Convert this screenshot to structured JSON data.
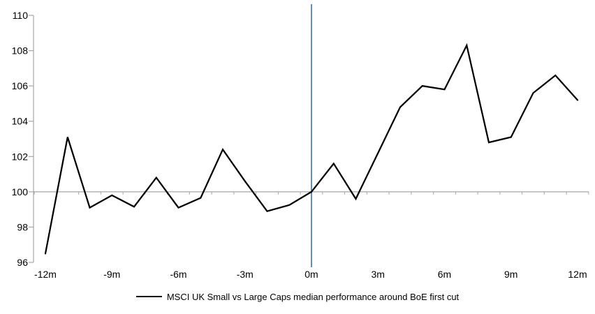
{
  "chart_data": {
    "type": "line",
    "title": "",
    "xlabel": "",
    "ylabel": "",
    "x": [
      -12,
      -11,
      -10,
      -9,
      -8,
      -7,
      -6,
      -5,
      -4,
      -3,
      -2,
      -1,
      0,
      1,
      2,
      3,
      4,
      5,
      6,
      7,
      8,
      9,
      10,
      11,
      12
    ],
    "series": [
      {
        "name": "MSCI UK Small vs Large Caps median performance around BoE first cut",
        "values": [
          96.5,
          103.1,
          99.1,
          99.8,
          99.15,
          100.8,
          99.1,
          99.65,
          102.4,
          100.6,
          98.9,
          99.25,
          100.0,
          101.6,
          99.6,
          102.2,
          104.8,
          106.0,
          105.8,
          108.3,
          102.8,
          103.1,
          105.6,
          106.6,
          105.2
        ],
        "color": "#000000"
      }
    ],
    "xlim": [
      -12,
      12
    ],
    "ylim": [
      96,
      110
    ],
    "yticks": [
      96,
      98,
      100,
      102,
      104,
      106,
      108,
      110
    ],
    "xticks": [
      {
        "pos": -12,
        "label": "-12m"
      },
      {
        "pos": -9,
        "label": "-9m"
      },
      {
        "pos": -6,
        "label": "-6m"
      },
      {
        "pos": -3,
        "label": "-3m"
      },
      {
        "pos": 0,
        "label": "0m"
      },
      {
        "pos": 3,
        "label": "3m"
      },
      {
        "pos": 6,
        "label": "6m"
      },
      {
        "pos": 9,
        "label": "9m"
      },
      {
        "pos": 12,
        "label": "12m"
      }
    ],
    "baseline_value": 100,
    "event_line_x": 0,
    "grid": "baseline-only",
    "legend_position": "bottom",
    "colors": {
      "series": "#000000",
      "event_line": "#4F81BD",
      "axis": "#A6A6A6",
      "baseline": "#A6A6A6",
      "text": "#000000",
      "background": "#FFFFFF"
    }
  },
  "legend": {
    "label": "MSCI UK Small vs Large Caps median performance around BoE first cut"
  }
}
